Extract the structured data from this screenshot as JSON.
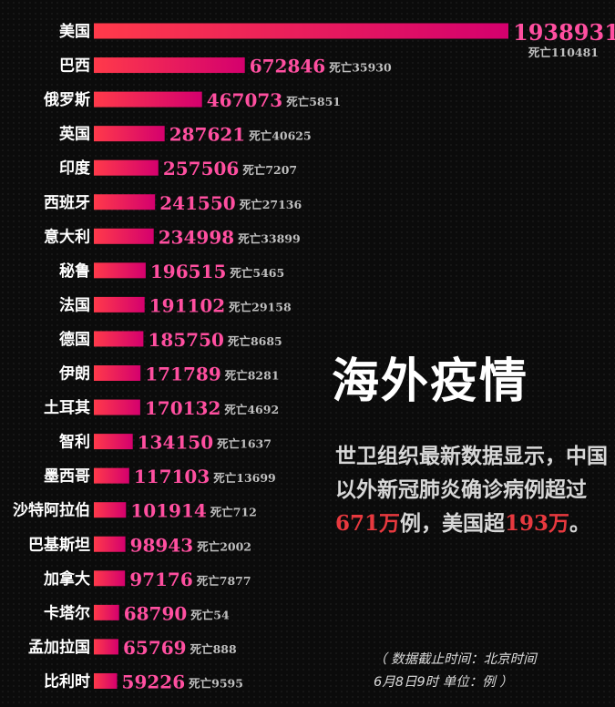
{
  "chart_data": {
    "type": "bar",
    "orientation": "horizontal",
    "death_prefix": "死亡",
    "rows": [
      {
        "country": "美国",
        "cases": 1938931,
        "deaths": 110481
      },
      {
        "country": "巴西",
        "cases": 672846,
        "deaths": 35930
      },
      {
        "country": "俄罗斯",
        "cases": 467073,
        "deaths": 5851
      },
      {
        "country": "英国",
        "cases": 287621,
        "deaths": 40625
      },
      {
        "country": "印度",
        "cases": 257506,
        "deaths": 7207
      },
      {
        "country": "西班牙",
        "cases": 241550,
        "deaths": 27136
      },
      {
        "country": "意大利",
        "cases": 234998,
        "deaths": 33899
      },
      {
        "country": "秘鲁",
        "cases": 196515,
        "deaths": 5465
      },
      {
        "country": "法国",
        "cases": 191102,
        "deaths": 29158
      },
      {
        "country": "德国",
        "cases": 185750,
        "deaths": 8685
      },
      {
        "country": "伊朗",
        "cases": 171789,
        "deaths": 8281
      },
      {
        "country": "土耳其",
        "cases": 170132,
        "deaths": 4692
      },
      {
        "country": "智利",
        "cases": 134150,
        "deaths": 1637
      },
      {
        "country": "墨西哥",
        "cases": 117103,
        "deaths": 13699
      },
      {
        "country": "沙特阿拉伯",
        "cases": 101914,
        "deaths": 712
      },
      {
        "country": "巴基斯坦",
        "cases": 98943,
        "deaths": 2002
      },
      {
        "country": "加拿大",
        "cases": 97176,
        "deaths": 7877
      },
      {
        "country": "卡塔尔",
        "cases": 68790,
        "deaths": 54
      },
      {
        "country": "孟加拉国",
        "cases": 65769,
        "deaths": 888
      },
      {
        "country": "比利时",
        "cases": 59226,
        "deaths": 9595
      }
    ],
    "colors": {
      "bar_start": "#ff3a4a",
      "bar_end": "#d4006e",
      "value": "#ff4fa0",
      "death": "#bfbfbf"
    }
  },
  "title": "海外疫情",
  "description": {
    "part1": "世卫组织最新数据显示，中国以外新冠肺炎确诊病例超过",
    "highlight1": "671万",
    "part2": "例，美国超",
    "highlight2": "193万",
    "part3": "。"
  },
  "note": {
    "line1": "（ 数据截止时间：北京时间",
    "line2": "6月8日9时  单位：例 ）"
  }
}
